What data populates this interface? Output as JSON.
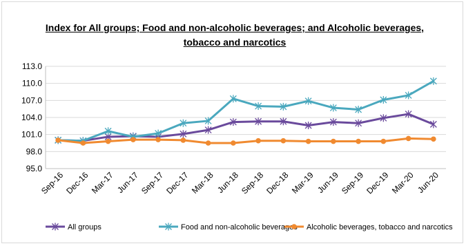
{
  "chart_data": {
    "type": "line",
    "title": "Index for All groups; Food and non-alcoholic beverages; and Alcoholic beverages, tobacco and narcotics",
    "categories": [
      "Sep-16",
      "Dec-16",
      "Mar-17",
      "Jun-17",
      "Sep-17",
      "Dec-17",
      "Mar-18",
      "Jun-18",
      "Sep-18",
      "Dec-18",
      "Mar-19",
      "Jun-19",
      "Sep-19",
      "Dec-19",
      "Mar-20",
      "Jun-20"
    ],
    "ylim": [
      95.0,
      113.0
    ],
    "yticks": [
      "95.0",
      "98.0",
      "101.0",
      "104.0",
      "107.0",
      "110.0",
      "113.0"
    ],
    "grid": true,
    "legend_position": "bottom",
    "series": [
      {
        "name": "All groups",
        "color": "#6a4a9c",
        "marker": "x",
        "values": [
          100.0,
          99.9,
          100.6,
          100.7,
          100.6,
          101.1,
          101.8,
          103.2,
          103.3,
          103.3,
          102.6,
          103.2,
          103.0,
          103.9,
          104.6,
          102.8
        ]
      },
      {
        "name": "Food and non-alcoholic beverages",
        "color": "#4aa8be",
        "marker": "x",
        "values": [
          100.0,
          99.9,
          101.6,
          100.6,
          101.2,
          103.0,
          103.4,
          107.3,
          106.0,
          105.9,
          106.9,
          105.7,
          105.4,
          107.1,
          107.9,
          110.4
        ]
      },
      {
        "name": "Alcoholic beverages, tobacco and narcotics",
        "color": "#f08a30",
        "marker": "circle",
        "values": [
          100.0,
          99.5,
          99.8,
          100.1,
          100.1,
          100.0,
          99.5,
          99.5,
          99.9,
          99.9,
          99.8,
          99.8,
          99.8,
          99.8,
          100.3,
          100.2
        ]
      }
    ]
  }
}
